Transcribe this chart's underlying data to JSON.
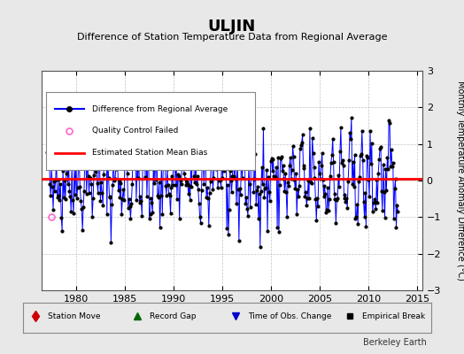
{
  "title": "ULJIN",
  "subtitle": "Difference of Station Temperature Data from Regional Average",
  "ylabel": "Monthly Temperature Anomaly Difference (°C)",
  "xlim": [
    1976.5,
    2015.5
  ],
  "ylim": [
    -3,
    3
  ],
  "yticks": [
    -3,
    -2,
    -1,
    0,
    1,
    2,
    3
  ],
  "xticks": [
    1980,
    1985,
    1990,
    1995,
    2000,
    2005,
    2010,
    2015
  ],
  "bias_line": 0.05,
  "line_color": "#0000ff",
  "dot_color": "#000000",
  "bias_color": "#ff0000",
  "qc_color": "#ff66cc",
  "background_color": "#e8e8e8",
  "plot_bg_color": "#ffffff",
  "watermark": "Berkeley Earth",
  "seed": 42,
  "n_months": 432,
  "start_year": 1977.0
}
